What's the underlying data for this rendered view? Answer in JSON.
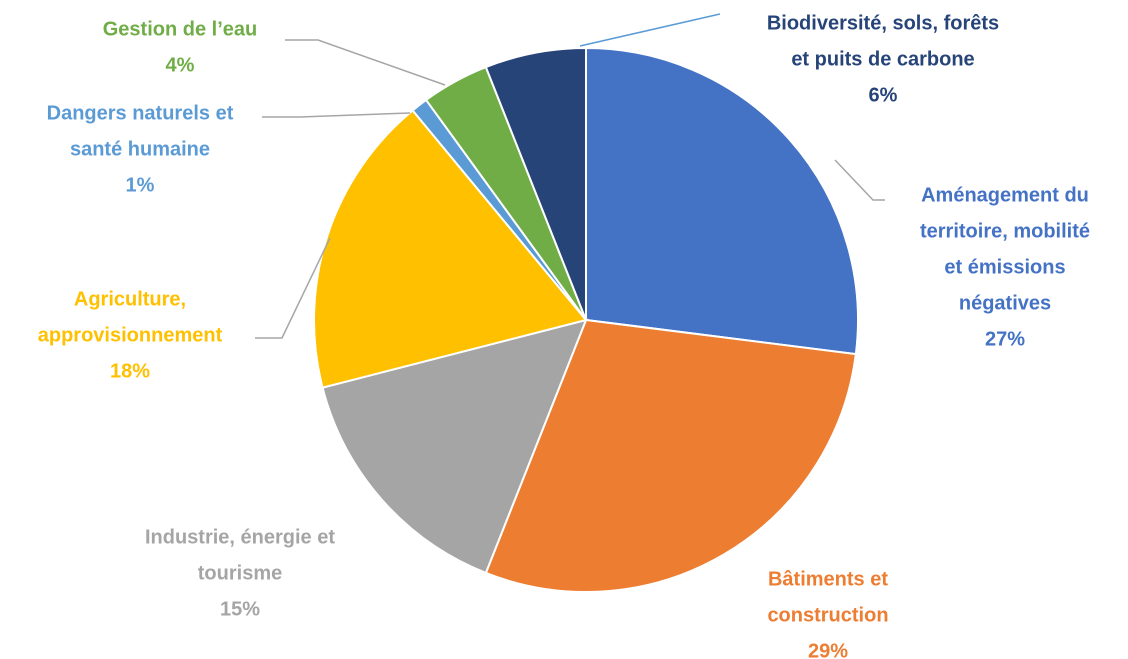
{
  "chart_data": {
    "type": "pie",
    "categories": [
      [
        "Aménagement du",
        "territoire, mobilité",
        "et émissions",
        "négatives"
      ],
      [
        "Bâtiments et",
        "construction"
      ],
      [
        "Industrie, énergie et",
        "tourisme"
      ],
      [
        "Agriculture,",
        "approvisionnement"
      ],
      [
        "Dangers naturels et",
        "santé humaine"
      ],
      [
        "Gestion de l’eau"
      ],
      [
        "Biodiversité, sols, forêts",
        "et puits de carbone"
      ]
    ],
    "values": [
      27,
      29,
      15,
      18,
      1,
      4,
      6
    ],
    "value_labels": [
      "27%",
      "29%",
      "15%",
      "18%",
      "1%",
      "4%",
      "6%"
    ],
    "colors": [
      "#4472c4",
      "#ed7d31",
      "#a5a5a5",
      "#ffc000",
      "#5b9bd5",
      "#70ad47",
      "#264478"
    ],
    "label_colors": [
      "#4472c4",
      "#ed7d31",
      "#a5a5a5",
      "#ffc000",
      "#5b9bd5",
      "#70ad47",
      "#264478"
    ]
  }
}
